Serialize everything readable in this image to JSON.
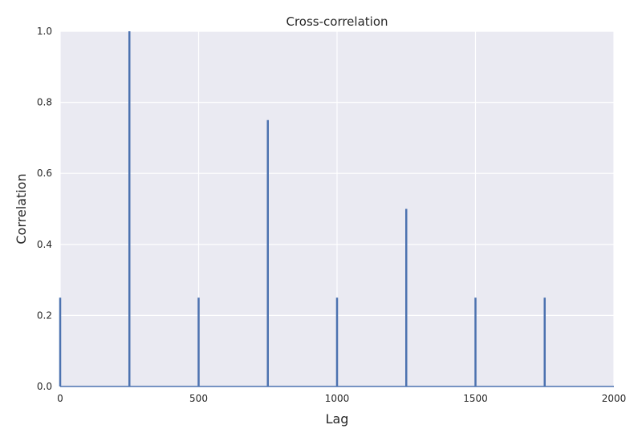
{
  "chart_data": {
    "type": "line",
    "title": "Cross-correlation",
    "xlabel": "Lag",
    "ylabel": "Correlation",
    "xlim": [
      0,
      2000
    ],
    "ylim": [
      0,
      1.0
    ],
    "xticks": [
      0,
      500,
      1000,
      1500,
      2000
    ],
    "yticks": [
      0.0,
      0.2,
      0.4,
      0.6,
      0.8,
      1.0
    ],
    "xtick_labels": [
      "0",
      "500",
      "1000",
      "1500",
      "2000"
    ],
    "ytick_labels": [
      "0.0",
      "0.2",
      "0.4",
      "0.6",
      "0.8",
      "1.0"
    ],
    "grid": true,
    "colors": {
      "background": "#eaeaf2",
      "grid": "#ffffff",
      "line": "#4c72b0"
    },
    "series": [
      {
        "x": [
          0,
          250,
          500,
          750,
          1000,
          1250,
          1500,
          1750
        ],
        "values": [
          0.25,
          1.0,
          0.25,
          0.75,
          0.25,
          0.5,
          0.25,
          0.25
        ]
      }
    ]
  }
}
